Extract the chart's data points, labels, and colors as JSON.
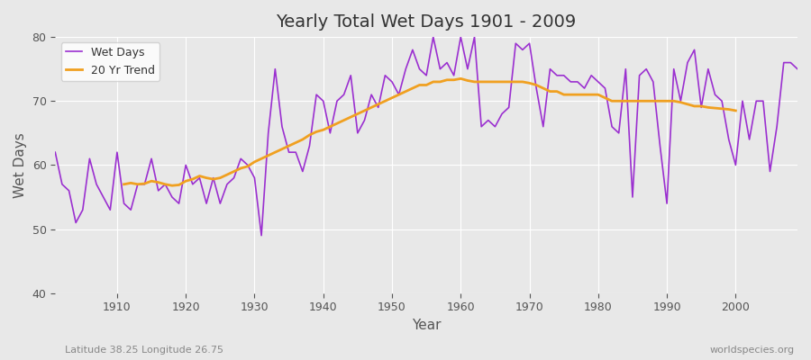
{
  "title": "Yearly Total Wet Days 1901 - 2009",
  "xlabel": "Year",
  "ylabel": "Wet Days",
  "ylim": [
    40,
    80
  ],
  "xlim": [
    1901,
    2009
  ],
  "bg_color": "#e8e8e8",
  "grid_color": "#ffffff",
  "wet_days_color": "#9b30d0",
  "trend_color": "#f0a020",
  "footnote_left": "Latitude 38.25 Longitude 26.75",
  "footnote_right": "worldspecies.org",
  "legend_labels": [
    "Wet Days",
    "20 Yr Trend"
  ],
  "years": [
    1901,
    1902,
    1903,
    1904,
    1905,
    1906,
    1907,
    1908,
    1909,
    1910,
    1911,
    1912,
    1913,
    1914,
    1915,
    1916,
    1917,
    1918,
    1919,
    1920,
    1921,
    1922,
    1923,
    1924,
    1925,
    1926,
    1927,
    1928,
    1929,
    1930,
    1931,
    1932,
    1933,
    1934,
    1935,
    1936,
    1937,
    1938,
    1939,
    1940,
    1941,
    1942,
    1943,
    1944,
    1945,
    1946,
    1947,
    1948,
    1949,
    1950,
    1951,
    1952,
    1953,
    1954,
    1955,
    1956,
    1957,
    1958,
    1959,
    1960,
    1961,
    1962,
    1963,
    1964,
    1965,
    1966,
    1967,
    1968,
    1969,
    1970,
    1971,
    1972,
    1973,
    1974,
    1975,
    1976,
    1977,
    1978,
    1979,
    1980,
    1981,
    1982,
    1983,
    1984,
    1985,
    1986,
    1987,
    1988,
    1989,
    1990,
    1991,
    1992,
    1993,
    1994,
    1995,
    1996,
    1997,
    1998,
    1999,
    2000,
    2001,
    2002,
    2003,
    2004,
    2005,
    2006,
    2007,
    2008,
    2009
  ],
  "wet_days": [
    62,
    57,
    56,
    51,
    53,
    61,
    57,
    55,
    53,
    62,
    54,
    53,
    57,
    57,
    61,
    56,
    57,
    55,
    54,
    60,
    57,
    58,
    54,
    58,
    54,
    57,
    58,
    61,
    60,
    58,
    49,
    65,
    75,
    66,
    62,
    62,
    59,
    63,
    71,
    70,
    65,
    70,
    71,
    74,
    65,
    67,
    71,
    69,
    74,
    73,
    71,
    75,
    78,
    75,
    74,
    80,
    75,
    76,
    74,
    80,
    75,
    80,
    66,
    67,
    66,
    68,
    69,
    79,
    78,
    79,
    72,
    66,
    75,
    74,
    74,
    73,
    73,
    72,
    74,
    73,
    72,
    66,
    65,
    75,
    55,
    74,
    75,
    73,
    63,
    54,
    75,
    70,
    76,
    78,
    69,
    75,
    71,
    70,
    64,
    60,
    70,
    64,
    70,
    70,
    59,
    66,
    76,
    76,
    75
  ],
  "trend_years": [
    1911,
    1912,
    1913,
    1914,
    1915,
    1916,
    1917,
    1918,
    1919,
    1920,
    1921,
    1922,
    1923,
    1924,
    1925,
    1926,
    1927,
    1928,
    1929,
    1930,
    1931,
    1932,
    1933,
    1934,
    1935,
    1936,
    1937,
    1938,
    1939,
    1940,
    1941,
    1942,
    1943,
    1944,
    1945,
    1946,
    1947,
    1948,
    1949,
    1950,
    1951,
    1952,
    1953,
    1954,
    1955,
    1956,
    1957,
    1958,
    1959,
    1960,
    1961,
    1962,
    1963,
    1964,
    1965,
    1966,
    1967,
    1968,
    1969,
    1970,
    1971,
    1972,
    1973,
    1974,
    1975,
    1976,
    1977,
    1978,
    1979,
    1980,
    1981,
    1982,
    1983,
    1984,
    1985,
    1986,
    1987,
    1988,
    1989,
    1990,
    1991,
    1992,
    1993,
    1994,
    1995,
    1996,
    1997,
    1998,
    1999,
    2000
  ],
  "trend_values": [
    57.0,
    57.2,
    57.0,
    57.1,
    57.5,
    57.3,
    57.0,
    56.8,
    56.9,
    57.5,
    57.8,
    58.3,
    58.0,
    57.8,
    58.0,
    58.5,
    59.0,
    59.5,
    59.8,
    60.5,
    61.0,
    61.5,
    62.0,
    62.5,
    63.0,
    63.5,
    64.0,
    64.7,
    65.2,
    65.5,
    66.0,
    66.5,
    67.0,
    67.5,
    68.0,
    68.5,
    69.0,
    69.5,
    70.0,
    70.5,
    71.0,
    71.5,
    72.0,
    72.5,
    72.5,
    73.0,
    73.0,
    73.3,
    73.3,
    73.5,
    73.2,
    73.0,
    73.0,
    73.0,
    73.0,
    73.0,
    73.0,
    73.0,
    73.0,
    72.8,
    72.5,
    72.0,
    71.5,
    71.5,
    71.0,
    71.0,
    71.0,
    71.0,
    71.0,
    71.0,
    70.5,
    70.0,
    70.0,
    70.0,
    70.0,
    70.0,
    70.0,
    70.0,
    70.0,
    70.0,
    70.0,
    69.8,
    69.5,
    69.2,
    69.2,
    69.0,
    68.9,
    68.8,
    68.7,
    68.5
  ]
}
